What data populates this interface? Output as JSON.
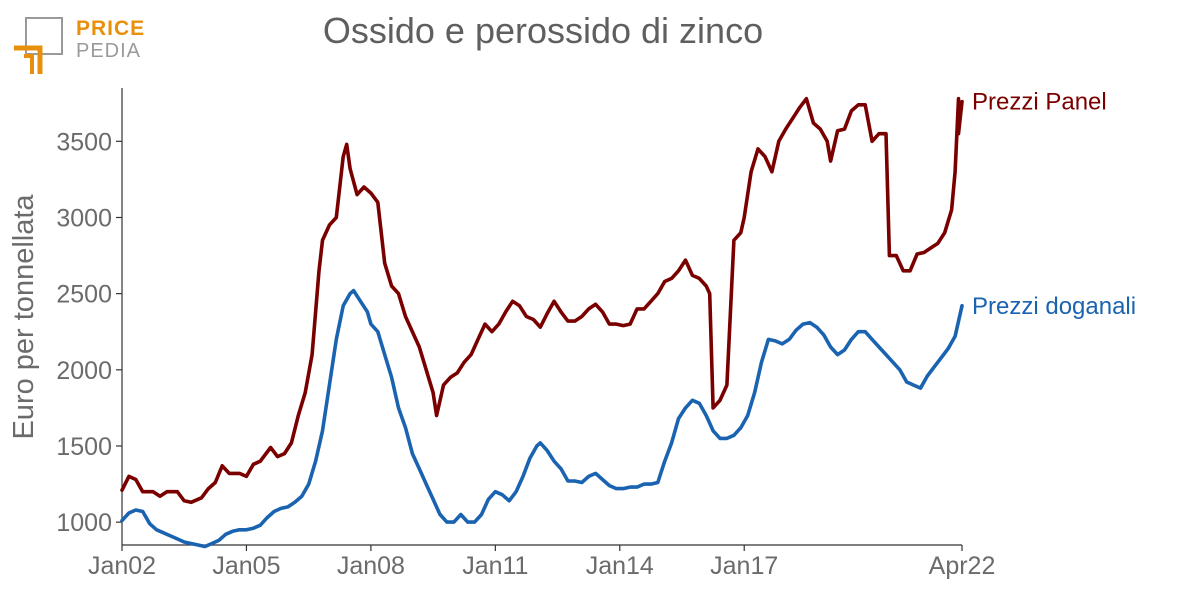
{
  "logo": {
    "line1": "PRICE",
    "line2": "PEDIA",
    "colors": {
      "orange": "#e8900c",
      "gray": "#9a9a9a"
    }
  },
  "chart_data": {
    "type": "line",
    "title": "Ossido e perossido di zinco",
    "ylabel": "Euro per tonnellata",
    "xlabel": "",
    "ylim": [
      850,
      3850
    ],
    "yticks": [
      1000,
      1500,
      2000,
      2500,
      3000,
      3500
    ],
    "xlim": [
      "2002-01",
      "2022-04"
    ],
    "xticks": [
      {
        "date": "2002-01",
        "label": "Jan02"
      },
      {
        "date": "2005-01",
        "label": "Jan05"
      },
      {
        "date": "2008-01",
        "label": "Jan08"
      },
      {
        "date": "2011-01",
        "label": "Jan11"
      },
      {
        "date": "2014-01",
        "label": "Jan14"
      },
      {
        "date": "2017-01",
        "label": "Jan17"
      },
      {
        "date": "2022-04",
        "label": "Apr22"
      }
    ],
    "grid": false,
    "legend": "inline labels at line ends",
    "series": [
      {
        "name": "Prezzi Panel",
        "color": "#7a0000",
        "points": [
          [
            "2002-01",
            1210
          ],
          [
            "2002-03",
            1300
          ],
          [
            "2002-05",
            1280
          ],
          [
            "2002-07",
            1200
          ],
          [
            "2002-10",
            1200
          ],
          [
            "2002-12",
            1170
          ],
          [
            "2003-02",
            1200
          ],
          [
            "2003-05",
            1200
          ],
          [
            "2003-07",
            1140
          ],
          [
            "2003-09",
            1130
          ],
          [
            "2003-12",
            1160
          ],
          [
            "2004-02",
            1220
          ],
          [
            "2004-04",
            1260
          ],
          [
            "2004-06",
            1370
          ],
          [
            "2004-08",
            1320
          ],
          [
            "2004-11",
            1320
          ],
          [
            "2005-01",
            1300
          ],
          [
            "2005-03",
            1380
          ],
          [
            "2005-05",
            1400
          ],
          [
            "2005-08",
            1490
          ],
          [
            "2005-10",
            1430
          ],
          [
            "2005-12",
            1450
          ],
          [
            "2006-02",
            1520
          ],
          [
            "2006-04",
            1700
          ],
          [
            "2006-06",
            1850
          ],
          [
            "2006-08",
            2100
          ],
          [
            "2006-10",
            2650
          ],
          [
            "2006-11",
            2850
          ],
          [
            "2007-01",
            2950
          ],
          [
            "2007-03",
            3000
          ],
          [
            "2007-05",
            3400
          ],
          [
            "2007-06",
            3480
          ],
          [
            "2007-07",
            3320
          ],
          [
            "2007-09",
            3150
          ],
          [
            "2007-11",
            3200
          ],
          [
            "2008-01",
            3160
          ],
          [
            "2008-03",
            3100
          ],
          [
            "2008-05",
            2700
          ],
          [
            "2008-07",
            2550
          ],
          [
            "2008-09",
            2500
          ],
          [
            "2008-11",
            2350
          ],
          [
            "2009-01",
            2250
          ],
          [
            "2009-03",
            2150
          ],
          [
            "2009-05",
            2000
          ],
          [
            "2009-07",
            1850
          ],
          [
            "2009-08",
            1700
          ],
          [
            "2009-10",
            1900
          ],
          [
            "2009-12",
            1950
          ],
          [
            "2010-02",
            1980
          ],
          [
            "2010-04",
            2050
          ],
          [
            "2010-06",
            2100
          ],
          [
            "2010-08",
            2200
          ],
          [
            "2010-10",
            2300
          ],
          [
            "2010-12",
            2250
          ],
          [
            "2011-02",
            2300
          ],
          [
            "2011-04",
            2380
          ],
          [
            "2011-06",
            2450
          ],
          [
            "2011-08",
            2420
          ],
          [
            "2011-10",
            2350
          ],
          [
            "2011-12",
            2330
          ],
          [
            "2012-02",
            2280
          ],
          [
            "2012-04",
            2370
          ],
          [
            "2012-06",
            2450
          ],
          [
            "2012-08",
            2380
          ],
          [
            "2012-10",
            2320
          ],
          [
            "2012-12",
            2320
          ],
          [
            "2013-02",
            2350
          ],
          [
            "2013-04",
            2400
          ],
          [
            "2013-06",
            2430
          ],
          [
            "2013-08",
            2380
          ],
          [
            "2013-10",
            2300
          ],
          [
            "2013-12",
            2300
          ],
          [
            "2014-02",
            2290
          ],
          [
            "2014-04",
            2300
          ],
          [
            "2014-06",
            2400
          ],
          [
            "2014-08",
            2400
          ],
          [
            "2014-10",
            2450
          ],
          [
            "2014-12",
            2500
          ],
          [
            "2015-02",
            2580
          ],
          [
            "2015-04",
            2600
          ],
          [
            "2015-06",
            2650
          ],
          [
            "2015-08",
            2720
          ],
          [
            "2015-10",
            2620
          ],
          [
            "2015-12",
            2600
          ],
          [
            "2016-02",
            2550
          ],
          [
            "2016-03",
            2500
          ],
          [
            "2016-04",
            1750
          ],
          [
            "2016-06",
            1800
          ],
          [
            "2016-08",
            1900
          ],
          [
            "2016-10",
            2850
          ],
          [
            "2016-12",
            2900
          ],
          [
            "2017-01",
            3000
          ],
          [
            "2017-03",
            3300
          ],
          [
            "2017-05",
            3450
          ],
          [
            "2017-07",
            3400
          ],
          [
            "2017-09",
            3300
          ],
          [
            "2017-11",
            3500
          ],
          [
            "2018-01",
            3580
          ],
          [
            "2018-03",
            3650
          ],
          [
            "2018-05",
            3720
          ],
          [
            "2018-07",
            3780
          ],
          [
            "2018-09",
            3620
          ],
          [
            "2018-11",
            3580
          ],
          [
            "2019-01",
            3500
          ],
          [
            "2019-02",
            3370
          ],
          [
            "2019-04",
            3570
          ],
          [
            "2019-06",
            3580
          ],
          [
            "2019-08",
            3700
          ],
          [
            "2019-10",
            3740
          ],
          [
            "2019-12",
            3740
          ],
          [
            "2020-02",
            3500
          ],
          [
            "2020-04",
            3550
          ],
          [
            "2020-06",
            3550
          ],
          [
            "2020-07",
            2750
          ],
          [
            "2020-09",
            2750
          ],
          [
            "2020-11",
            2650
          ],
          [
            "2021-01",
            2650
          ],
          [
            "2021-03",
            2760
          ],
          [
            "2021-05",
            2770
          ],
          [
            "2021-07",
            2800
          ],
          [
            "2021-09",
            2830
          ],
          [
            "2021-11",
            2900
          ],
          [
            "2022-01",
            3050
          ],
          [
            "2022-02",
            3300
          ],
          [
            "2022-03",
            3780
          ],
          [
            "2022-03",
            3550
          ],
          [
            "2022-04",
            3760
          ]
        ]
      },
      {
        "name": "Prezzi doganali",
        "color": "#1a63b0",
        "points": [
          [
            "2002-01",
            1010
          ],
          [
            "2002-03",
            1060
          ],
          [
            "2002-05",
            1080
          ],
          [
            "2002-07",
            1070
          ],
          [
            "2002-09",
            990
          ],
          [
            "2002-11",
            950
          ],
          [
            "2003-01",
            930
          ],
          [
            "2003-03",
            910
          ],
          [
            "2003-05",
            890
          ],
          [
            "2003-07",
            870
          ],
          [
            "2003-09",
            860
          ],
          [
            "2003-11",
            850
          ],
          [
            "2004-01",
            840
          ],
          [
            "2004-03",
            860
          ],
          [
            "2004-05",
            880
          ],
          [
            "2004-07",
            920
          ],
          [
            "2004-09",
            940
          ],
          [
            "2004-11",
            950
          ],
          [
            "2005-01",
            950
          ],
          [
            "2005-03",
            960
          ],
          [
            "2005-05",
            980
          ],
          [
            "2005-07",
            1030
          ],
          [
            "2005-09",
            1070
          ],
          [
            "2005-11",
            1090
          ],
          [
            "2006-01",
            1100
          ],
          [
            "2006-03",
            1130
          ],
          [
            "2006-05",
            1170
          ],
          [
            "2006-07",
            1250
          ],
          [
            "2006-09",
            1400
          ],
          [
            "2006-11",
            1600
          ],
          [
            "2007-01",
            1900
          ],
          [
            "2007-03",
            2200
          ],
          [
            "2007-05",
            2420
          ],
          [
            "2007-07",
            2500
          ],
          [
            "2007-08",
            2520
          ],
          [
            "2007-10",
            2450
          ],
          [
            "2007-12",
            2380
          ],
          [
            "2008-01",
            2300
          ],
          [
            "2008-03",
            2250
          ],
          [
            "2008-05",
            2100
          ],
          [
            "2008-07",
            1950
          ],
          [
            "2008-09",
            1750
          ],
          [
            "2008-11",
            1620
          ],
          [
            "2009-01",
            1450
          ],
          [
            "2009-03",
            1350
          ],
          [
            "2009-05",
            1250
          ],
          [
            "2009-07",
            1150
          ],
          [
            "2009-09",
            1050
          ],
          [
            "2009-11",
            1000
          ],
          [
            "2010-01",
            1000
          ],
          [
            "2010-03",
            1050
          ],
          [
            "2010-05",
            1000
          ],
          [
            "2010-07",
            1000
          ],
          [
            "2010-09",
            1050
          ],
          [
            "2010-11",
            1150
          ],
          [
            "2011-01",
            1200
          ],
          [
            "2011-03",
            1180
          ],
          [
            "2011-05",
            1140
          ],
          [
            "2011-07",
            1200
          ],
          [
            "2011-09",
            1300
          ],
          [
            "2011-11",
            1420
          ],
          [
            "2012-01",
            1500
          ],
          [
            "2012-02",
            1520
          ],
          [
            "2012-04",
            1470
          ],
          [
            "2012-06",
            1400
          ],
          [
            "2012-08",
            1350
          ],
          [
            "2012-10",
            1270
          ],
          [
            "2012-12",
            1270
          ],
          [
            "2013-02",
            1260
          ],
          [
            "2013-04",
            1300
          ],
          [
            "2013-06",
            1320
          ],
          [
            "2013-08",
            1280
          ],
          [
            "2013-10",
            1240
          ],
          [
            "2013-12",
            1220
          ],
          [
            "2014-02",
            1220
          ],
          [
            "2014-04",
            1230
          ],
          [
            "2014-06",
            1230
          ],
          [
            "2014-08",
            1250
          ],
          [
            "2014-10",
            1250
          ],
          [
            "2014-12",
            1260
          ],
          [
            "2015-02",
            1400
          ],
          [
            "2015-04",
            1520
          ],
          [
            "2015-06",
            1680
          ],
          [
            "2015-08",
            1750
          ],
          [
            "2015-10",
            1800
          ],
          [
            "2015-12",
            1780
          ],
          [
            "2016-02",
            1700
          ],
          [
            "2016-04",
            1600
          ],
          [
            "2016-06",
            1550
          ],
          [
            "2016-08",
            1550
          ],
          [
            "2016-10",
            1570
          ],
          [
            "2016-12",
            1620
          ],
          [
            "2017-02",
            1700
          ],
          [
            "2017-04",
            1850
          ],
          [
            "2017-06",
            2050
          ],
          [
            "2017-08",
            2200
          ],
          [
            "2017-10",
            2190
          ],
          [
            "2017-12",
            2170
          ],
          [
            "2018-02",
            2200
          ],
          [
            "2018-04",
            2260
          ],
          [
            "2018-06",
            2300
          ],
          [
            "2018-08",
            2310
          ],
          [
            "2018-10",
            2280
          ],
          [
            "2018-12",
            2230
          ],
          [
            "2019-02",
            2150
          ],
          [
            "2019-04",
            2100
          ],
          [
            "2019-06",
            2130
          ],
          [
            "2019-08",
            2200
          ],
          [
            "2019-10",
            2250
          ],
          [
            "2019-12",
            2250
          ],
          [
            "2020-02",
            2200
          ],
          [
            "2020-04",
            2150
          ],
          [
            "2020-06",
            2100
          ],
          [
            "2020-08",
            2050
          ],
          [
            "2020-10",
            2000
          ],
          [
            "2020-12",
            1920
          ],
          [
            "2021-02",
            1900
          ],
          [
            "2021-04",
            1880
          ],
          [
            "2021-06",
            1960
          ],
          [
            "2021-08",
            2020
          ],
          [
            "2021-10",
            2080
          ],
          [
            "2021-12",
            2140
          ],
          [
            "2022-02",
            2220
          ],
          [
            "2022-04",
            2420
          ]
        ]
      }
    ]
  }
}
